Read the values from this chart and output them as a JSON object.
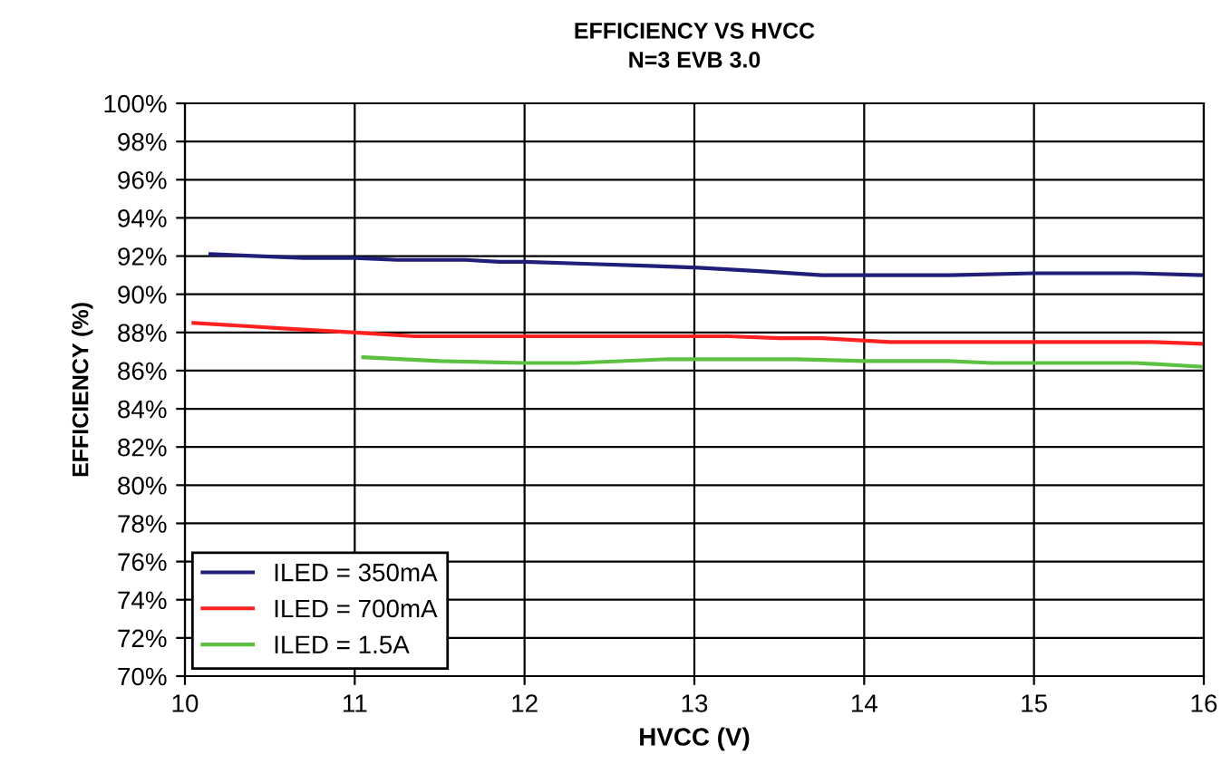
{
  "chart_data": {
    "type": "line",
    "title": "EFFICIENCY VS HVCC",
    "subtitle": "N=3 EVB 3.0",
    "xlabel": "HVCC (V)",
    "ylabel": "EFFICIENCY (%)",
    "xlim": [
      10,
      16
    ],
    "xticks": [
      10,
      11,
      12,
      13,
      14,
      15,
      16
    ],
    "ylim": [
      70,
      100
    ],
    "yticks": [
      {
        "value": 70,
        "label": "70%"
      },
      {
        "value": 72,
        "label": "72%"
      },
      {
        "value": 74,
        "label": "74%"
      },
      {
        "value": 76,
        "label": "76%"
      },
      {
        "value": 78,
        "label": "78%"
      },
      {
        "value": 80,
        "label": "80%"
      },
      {
        "value": 82,
        "label": "82%"
      },
      {
        "value": 84,
        "label": "84%"
      },
      {
        "value": 86,
        "label": "86%"
      },
      {
        "value": 88,
        "label": "88%"
      },
      {
        "value": 90,
        "label": "90%"
      },
      {
        "value": 92,
        "label": "92%"
      },
      {
        "value": 94,
        "label": "94%"
      },
      {
        "value": 96,
        "label": "96%"
      },
      {
        "value": 98,
        "label": "98%"
      },
      {
        "value": 100,
        "label": "100%"
      }
    ],
    "grid": true,
    "legend": "bottom left",
    "marker": "none",
    "line_style": "solid",
    "series": [
      {
        "name": "ILED = 350mA",
        "color": "#1f1f7a",
        "x": [
          10.15,
          10.7,
          11.0,
          11.25,
          11.65,
          11.85,
          12.0,
          12.35,
          12.7,
          13.0,
          13.4,
          13.75,
          14.0,
          14.5,
          15.0,
          15.6,
          16.0
        ],
        "values": [
          92.1,
          91.9,
          91.9,
          91.8,
          91.8,
          91.7,
          91.7,
          91.6,
          91.5,
          91.4,
          91.2,
          91.0,
          91.0,
          91.0,
          91.1,
          91.1,
          91.0
        ]
      },
      {
        "name": "ILED = 700mA",
        "color": "#ff2020",
        "x": [
          10.05,
          10.6,
          11.0,
          11.35,
          12.0,
          13.0,
          13.2,
          13.5,
          13.75,
          14.15,
          15.0,
          15.7,
          16.0
        ],
        "values": [
          88.5,
          88.2,
          88.0,
          87.8,
          87.8,
          87.8,
          87.8,
          87.7,
          87.7,
          87.5,
          87.5,
          87.5,
          87.4
        ]
      },
      {
        "name": "ILED = 1.5A",
        "color": "#5cc040",
        "x": [
          11.05,
          11.5,
          12.0,
          12.3,
          12.85,
          13.0,
          13.6,
          14.0,
          14.5,
          14.75,
          15.0,
          15.6,
          16.0
        ],
        "values": [
          86.7,
          86.5,
          86.4,
          86.4,
          86.6,
          86.6,
          86.6,
          86.5,
          86.5,
          86.4,
          86.4,
          86.4,
          86.2
        ]
      }
    ]
  }
}
